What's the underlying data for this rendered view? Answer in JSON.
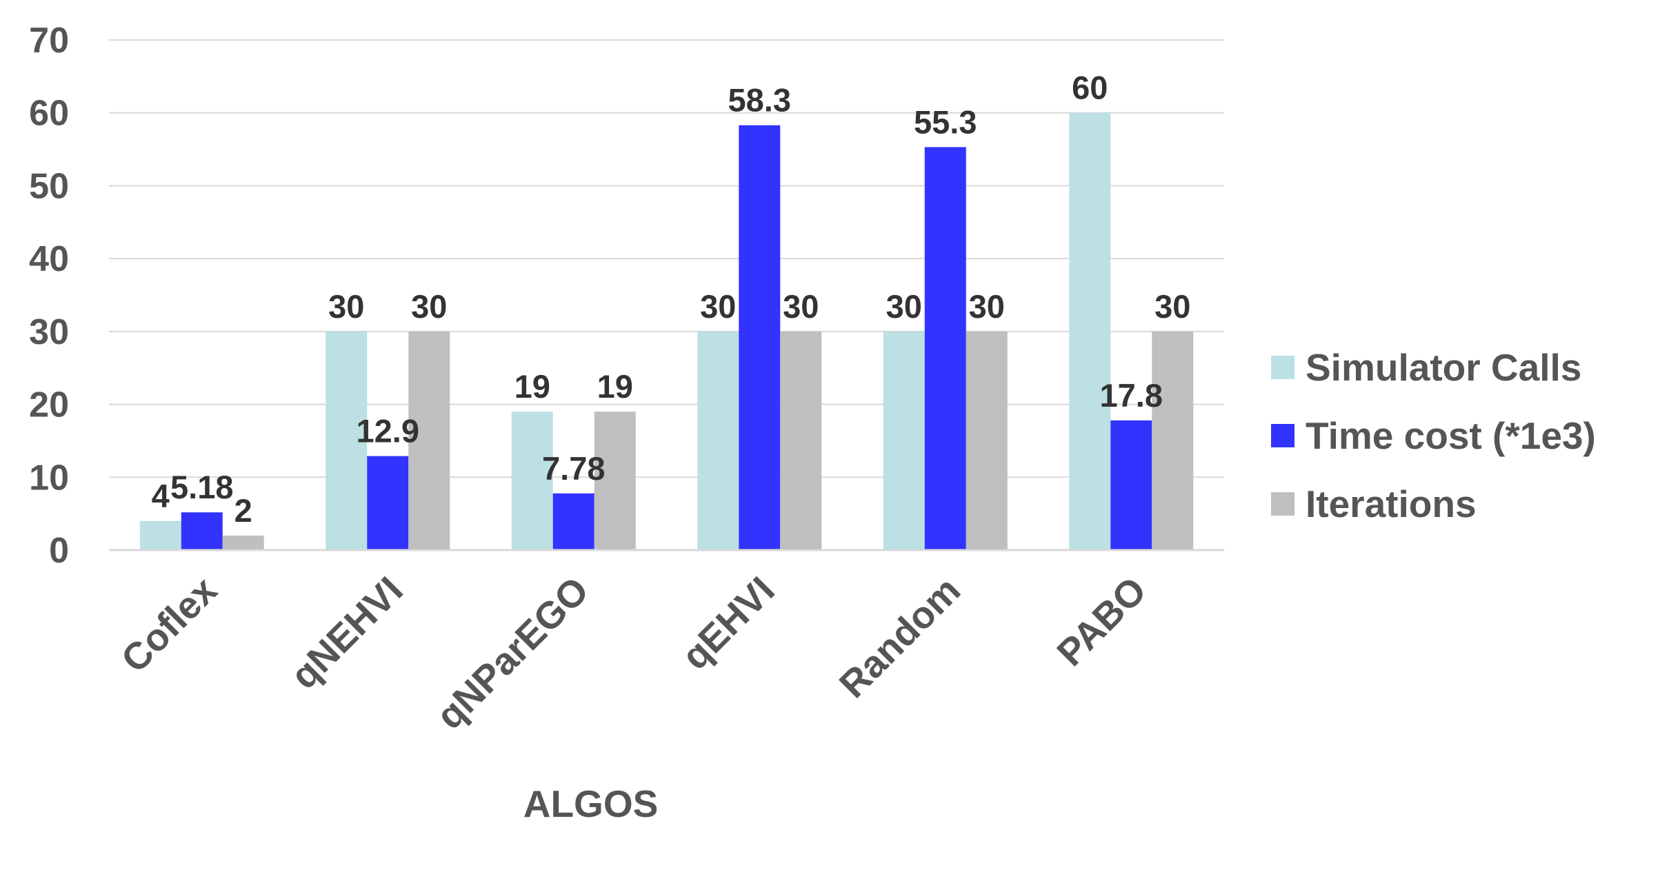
{
  "chart_data": {
    "type": "bar",
    "title": "",
    "xlabel": "ALGOS",
    "ylabel": "",
    "ylim": [
      0,
      70
    ],
    "yticks": [
      0,
      10,
      20,
      30,
      40,
      50,
      60,
      70
    ],
    "grid": true,
    "legend_position": "right",
    "categories": [
      "Coflex",
      "qNEHVI",
      "qNParEGO",
      "qEHVI",
      "Random",
      "PABO"
    ],
    "series": [
      {
        "name": "Simulator Calls",
        "color": "#BCE0E3",
        "values": [
          4,
          30,
          19,
          30,
          30,
          60
        ],
        "labels": [
          "4",
          "30",
          "19",
          "30",
          "30",
          "60"
        ]
      },
      {
        "name": "Time cost (*1e3)",
        "color": "#3333FF",
        "values": [
          5.18,
          12.9,
          7.78,
          58.3,
          55.3,
          17.8
        ],
        "labels": [
          "5.18",
          "12.9",
          "7.78",
          "58.3",
          "55.3",
          "17.8"
        ]
      },
      {
        "name": "Iterations",
        "color": "#BFBFBF",
        "values": [
          2,
          30,
          19,
          30,
          30,
          30
        ],
        "labels": [
          "2",
          "30",
          "19",
          "30",
          "30",
          "30"
        ]
      }
    ]
  }
}
